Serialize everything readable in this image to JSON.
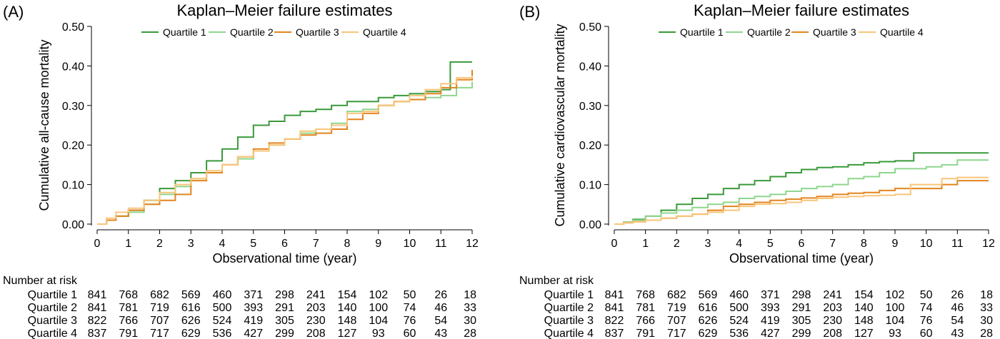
{
  "chart_data": [
    {
      "type": "line",
      "panel_label": "(A)",
      "title": "Kaplan–Meier failure estimates",
      "xlabel": "Observational time (year)",
      "ylabel": "Cumulative all-cause mortality",
      "xlim": [
        0,
        12
      ],
      "ylim": [
        0,
        0.5
      ],
      "x_ticks": [
        "0",
        "1",
        "2",
        "3",
        "4",
        "5",
        "6",
        "7",
        "8",
        "9",
        "10",
        "11",
        "12"
      ],
      "y_ticks": [
        "0.00",
        "0.10",
        "0.20",
        "0.30",
        "0.40",
        "0.50"
      ],
      "grid": false,
      "legend_position": "top",
      "series": [
        {
          "name": "Quartile 1",
          "color": "#3a9a3a",
          "x": [
            0,
            0.3,
            0.6,
            1.0,
            1.5,
            2.0,
            2.5,
            3.0,
            3.5,
            4.0,
            4.5,
            5.0,
            5.5,
            6.0,
            6.5,
            7.0,
            7.5,
            8.0,
            8.5,
            9.0,
            9.5,
            10.0,
            10.5,
            11.0,
            11.3,
            12.0
          ],
          "y": [
            0,
            0.01,
            0.02,
            0.035,
            0.06,
            0.09,
            0.11,
            0.13,
            0.16,
            0.19,
            0.22,
            0.25,
            0.26,
            0.275,
            0.285,
            0.29,
            0.3,
            0.31,
            0.31,
            0.32,
            0.325,
            0.33,
            0.335,
            0.34,
            0.41,
            0.41
          ]
        },
        {
          "name": "Quartile 2",
          "color": "#8fd68f",
          "x": [
            0,
            0.3,
            0.6,
            1.0,
            1.5,
            2.0,
            2.5,
            3.0,
            3.5,
            4.0,
            4.5,
            5.0,
            5.5,
            6.0,
            6.5,
            7.0,
            7.5,
            8.0,
            8.5,
            9.0,
            9.5,
            10.0,
            10.5,
            11.0,
            11.5,
            12.0
          ],
          "y": [
            0,
            0.01,
            0.02,
            0.03,
            0.05,
            0.075,
            0.095,
            0.115,
            0.13,
            0.15,
            0.165,
            0.185,
            0.2,
            0.215,
            0.23,
            0.24,
            0.255,
            0.285,
            0.29,
            0.3,
            0.31,
            0.315,
            0.32,
            0.325,
            0.345,
            0.36
          ]
        },
        {
          "name": "Quartile 3",
          "color": "#e3841e",
          "x": [
            0,
            0.3,
            0.6,
            1.0,
            1.5,
            2.0,
            2.5,
            3.0,
            3.5,
            4.0,
            4.5,
            5.0,
            5.5,
            6.0,
            6.5,
            7.0,
            7.5,
            8.0,
            8.5,
            9.0,
            9.5,
            10.0,
            10.5,
            11.0,
            11.5,
            12.0
          ],
          "y": [
            0,
            0.01,
            0.02,
            0.035,
            0.05,
            0.06,
            0.075,
            0.11,
            0.13,
            0.15,
            0.17,
            0.19,
            0.205,
            0.215,
            0.225,
            0.23,
            0.24,
            0.265,
            0.28,
            0.3,
            0.31,
            0.315,
            0.33,
            0.345,
            0.365,
            0.39
          ]
        },
        {
          "name": "Quartile 4",
          "color": "#f9c57a",
          "x": [
            0,
            0.3,
            0.6,
            1.0,
            1.5,
            2.0,
            2.5,
            3.0,
            3.5,
            4.0,
            4.5,
            5.0,
            5.5,
            6.0,
            6.5,
            7.0,
            7.5,
            8.0,
            8.5,
            9.0,
            9.5,
            10.0,
            10.5,
            11.0,
            11.5,
            12.0
          ],
          "y": [
            0,
            0.015,
            0.03,
            0.04,
            0.06,
            0.08,
            0.1,
            0.115,
            0.135,
            0.15,
            0.17,
            0.185,
            0.2,
            0.215,
            0.235,
            0.24,
            0.25,
            0.28,
            0.285,
            0.3,
            0.31,
            0.325,
            0.34,
            0.355,
            0.37,
            0.375
          ]
        }
      ],
      "risk_table": {
        "title": "Number at risk",
        "rows": [
          {
            "label": "Quartile 1",
            "values": [
              "841",
              "768",
              "682",
              "569",
              "460",
              "371",
              "298",
              "241",
              "154",
              "102",
              "50",
              "26",
              "18"
            ]
          },
          {
            "label": "Quartile 2",
            "values": [
              "841",
              "781",
              "719",
              "616",
              "500",
              "393",
              "291",
              "203",
              "140",
              "100",
              "74",
              "46",
              "33"
            ]
          },
          {
            "label": "Quartile 3",
            "values": [
              "822",
              "766",
              "707",
              "626",
              "524",
              "419",
              "305",
              "230",
              "148",
              "104",
              "76",
              "54",
              "30"
            ]
          },
          {
            "label": "Quartile 4",
            "values": [
              "837",
              "791",
              "717",
              "629",
              "536",
              "427",
              "299",
              "208",
              "127",
              "93",
              "60",
              "43",
              "28"
            ]
          }
        ]
      }
    },
    {
      "type": "line",
      "panel_label": "(B)",
      "title": "Kaplan–Meier failure estimates",
      "xlabel": "Observational time (year)",
      "ylabel": "Cumulative cardiovascular mortality",
      "xlim": [
        0,
        12
      ],
      "ylim": [
        0,
        0.5
      ],
      "x_ticks": [
        "0",
        "1",
        "2",
        "3",
        "4",
        "5",
        "6",
        "7",
        "8",
        "9",
        "10",
        "11",
        "12"
      ],
      "y_ticks": [
        "0.00",
        "0.10",
        "0.20",
        "0.30",
        "0.40",
        "0.50"
      ],
      "grid": false,
      "legend_position": "top",
      "series": [
        {
          "name": "Quartile 1",
          "color": "#3a9a3a",
          "x": [
            0,
            0.3,
            0.6,
            1.0,
            1.5,
            2.0,
            2.5,
            3.0,
            3.5,
            4.0,
            4.5,
            5.0,
            5.5,
            6.0,
            6.5,
            7.0,
            7.5,
            8.0,
            8.5,
            9.0,
            9.5,
            9.6,
            10.0,
            11.0,
            12.0
          ],
          "y": [
            0,
            0.005,
            0.012,
            0.02,
            0.035,
            0.05,
            0.065,
            0.075,
            0.09,
            0.1,
            0.11,
            0.12,
            0.13,
            0.138,
            0.143,
            0.145,
            0.15,
            0.155,
            0.158,
            0.16,
            0.16,
            0.18,
            0.18,
            0.18,
            0.18
          ]
        },
        {
          "name": "Quartile 2",
          "color": "#8fd68f",
          "x": [
            0,
            0.3,
            0.6,
            1.0,
            1.5,
            2.0,
            2.5,
            3.0,
            3.5,
            4.0,
            4.5,
            5.0,
            5.5,
            6.0,
            6.5,
            7.0,
            7.5,
            8.0,
            8.5,
            9.0,
            9.5,
            10.0,
            10.5,
            11.0,
            12.0
          ],
          "y": [
            0,
            0.005,
            0.01,
            0.02,
            0.028,
            0.035,
            0.042,
            0.05,
            0.055,
            0.065,
            0.07,
            0.075,
            0.083,
            0.09,
            0.095,
            0.1,
            0.115,
            0.12,
            0.13,
            0.14,
            0.14,
            0.145,
            0.15,
            0.162,
            0.162
          ]
        },
        {
          "name": "Quartile 3",
          "color": "#e3841e",
          "x": [
            0,
            0.3,
            0.6,
            1.0,
            1.5,
            2.0,
            2.5,
            3.0,
            3.5,
            4.0,
            4.5,
            5.0,
            5.5,
            6.0,
            6.5,
            7.0,
            7.5,
            8.0,
            8.5,
            9.0,
            9.5,
            10.0,
            10.5,
            11.0,
            12.0
          ],
          "y": [
            0,
            0.003,
            0.006,
            0.01,
            0.015,
            0.02,
            0.025,
            0.035,
            0.045,
            0.05,
            0.055,
            0.06,
            0.063,
            0.066,
            0.07,
            0.075,
            0.078,
            0.08,
            0.085,
            0.09,
            0.09,
            0.09,
            0.1,
            0.11,
            0.11
          ]
        },
        {
          "name": "Quartile 4",
          "color": "#f9c57a",
          "x": [
            0,
            0.3,
            0.6,
            1.0,
            1.5,
            2.0,
            2.5,
            3.0,
            3.5,
            4.0,
            4.5,
            5.0,
            5.5,
            6.0,
            6.5,
            7.0,
            7.5,
            8.0,
            8.5,
            9.0,
            9.5,
            10.0,
            10.5,
            11.0,
            12.0
          ],
          "y": [
            0,
            0.003,
            0.006,
            0.01,
            0.015,
            0.02,
            0.025,
            0.03,
            0.035,
            0.045,
            0.05,
            0.052,
            0.055,
            0.06,
            0.065,
            0.068,
            0.07,
            0.072,
            0.073,
            0.075,
            0.1,
            0.1,
            0.115,
            0.118,
            0.118
          ]
        }
      ],
      "risk_table": {
        "title": "Number at risk",
        "rows": [
          {
            "label": "Quartile 1",
            "values": [
              "841",
              "768",
              "682",
              "569",
              "460",
              "371",
              "298",
              "241",
              "154",
              "102",
              "50",
              "26",
              "18"
            ]
          },
          {
            "label": "Quartile 2",
            "values": [
              "841",
              "781",
              "719",
              "616",
              "500",
              "393",
              "291",
              "203",
              "140",
              "100",
              "74",
              "46",
              "33"
            ]
          },
          {
            "label": "Quartile 3",
            "values": [
              "822",
              "766",
              "707",
              "626",
              "524",
              "419",
              "305",
              "230",
              "148",
              "104",
              "76",
              "54",
              "30"
            ]
          },
          {
            "label": "Quartile 4",
            "values": [
              "837",
              "791",
              "717",
              "629",
              "536",
              "427",
              "299",
              "208",
              "127",
              "93",
              "60",
              "43",
              "28"
            ]
          }
        ]
      }
    }
  ]
}
